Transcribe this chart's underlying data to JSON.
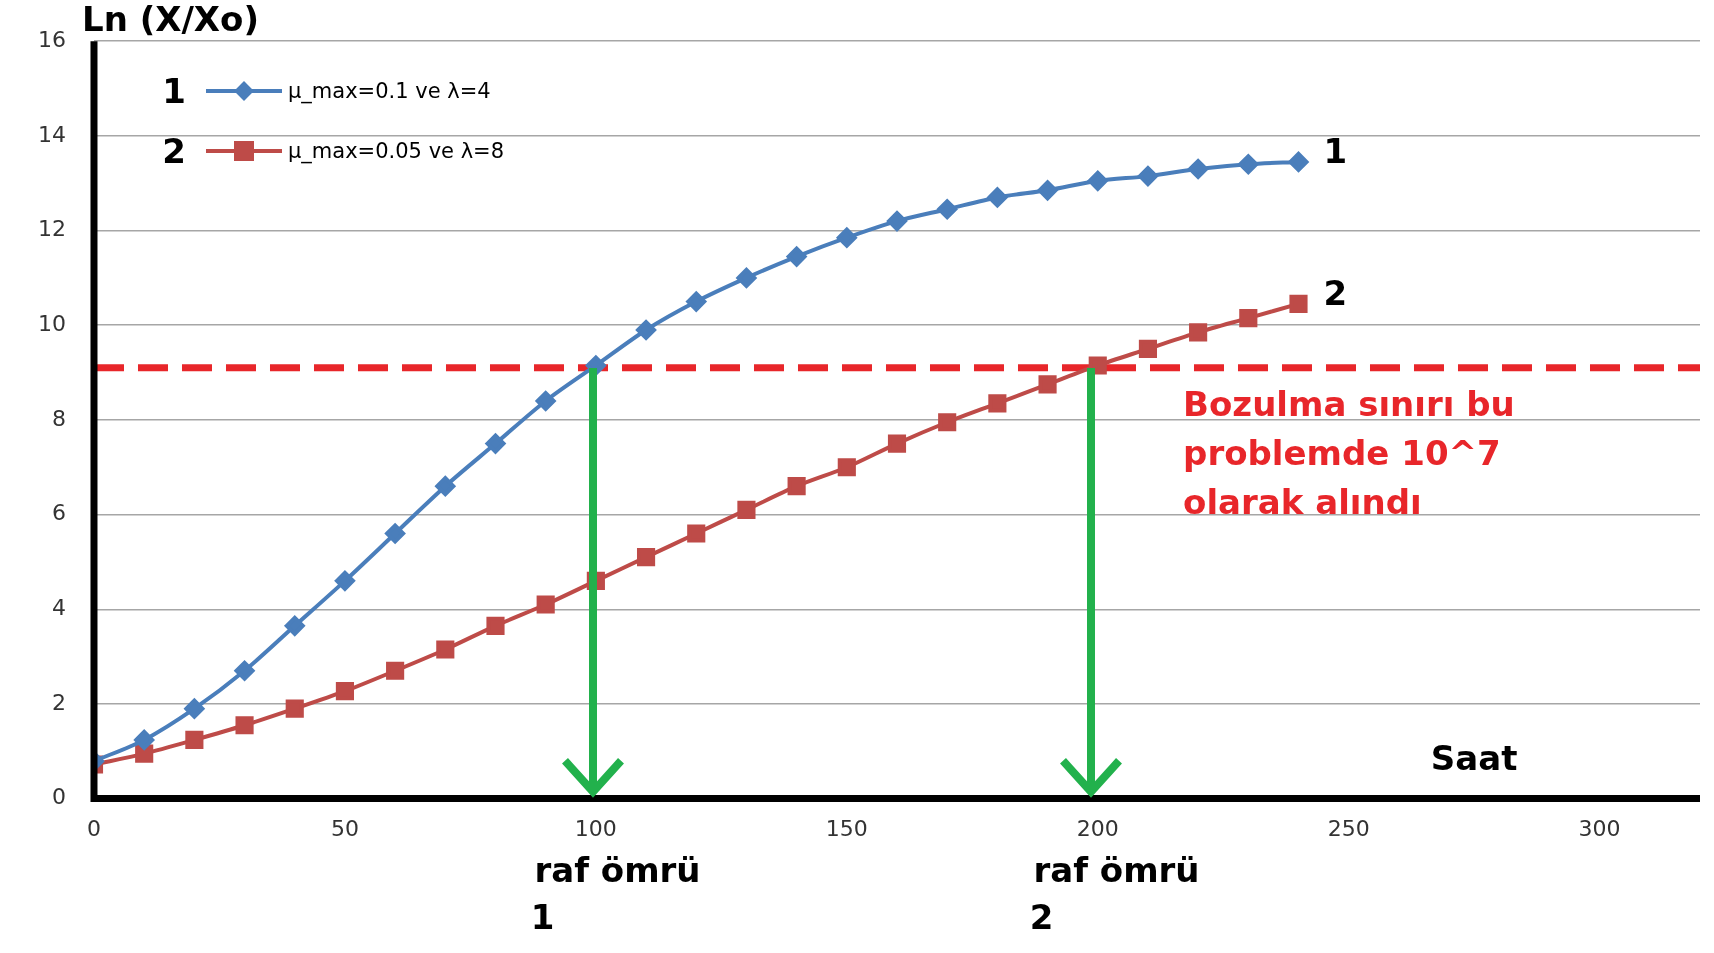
{
  "chart_data": {
    "type": "line",
    "xlabel": "Saat",
    "ylabel": "Ln (X/Xo)",
    "x": [
      0,
      10,
      20,
      30,
      40,
      50,
      60,
      70,
      80,
      90,
      100,
      110,
      120,
      130,
      140,
      150,
      160,
      170,
      180,
      190,
      200,
      210,
      220,
      230,
      240
    ],
    "series": [
      {
        "name": "µ_max=0.1 ve λ=4",
        "color": "#4a7ebb",
        "marker": "diamond",
        "values": [
          0.79,
          1.24,
          1.9,
          2.7,
          3.65,
          4.6,
          5.6,
          6.6,
          7.5,
          8.4,
          9.15,
          9.9,
          10.5,
          11.0,
          11.45,
          11.85,
          12.2,
          12.45,
          12.7,
          12.85,
          13.05,
          13.15,
          13.3,
          13.4,
          13.45
        ]
      },
      {
        "name": "µ_max=0.05 ve λ=8",
        "color": "#be4b48",
        "marker": "square",
        "values": [
          0.72,
          0.95,
          1.24,
          1.55,
          1.9,
          2.27,
          2.7,
          3.15,
          3.65,
          4.1,
          4.6,
          5.1,
          5.6,
          6.1,
          6.6,
          7.0,
          7.5,
          7.95,
          8.35,
          8.75,
          9.15,
          9.5,
          9.85,
          10.15,
          10.45
        ]
      }
    ],
    "xlim": [
      0,
      320
    ],
    "xticks": [
      0,
      50,
      100,
      150,
      200,
      250,
      300
    ],
    "ylim": [
      0,
      16
    ],
    "yticks": [
      0,
      2,
      4,
      6,
      8,
      10,
      12,
      14,
      16
    ],
    "grid": "y",
    "legend": "top left",
    "line_style": "solid",
    "ref_lines": [
      {
        "axis": "y",
        "value": 9.1,
        "label": "Bozulma sınırı bu problemde 10^7 olarak alındı",
        "color": "#e8262a",
        "line_style": "dashed"
      }
    ],
    "annotations": [
      {
        "text": "1",
        "x": 240,
        "y": 13.45
      },
      {
        "text": "2",
        "x": 240,
        "y": 10.45
      },
      "raf ömrü 1",
      "raf ömrü 2"
    ]
  }
}
